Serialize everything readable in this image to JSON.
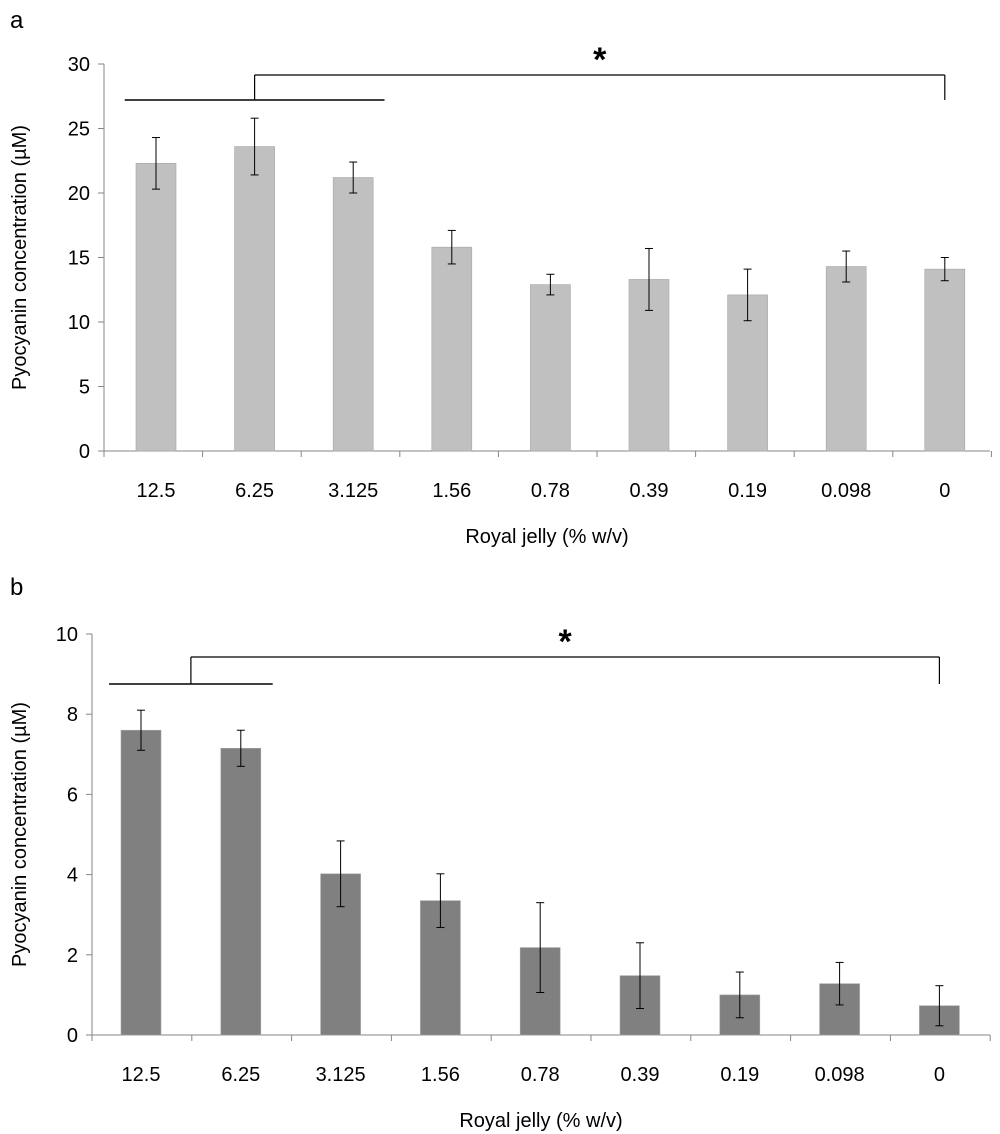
{
  "chart_data": [
    {
      "panel_label": "a",
      "type": "bar",
      "xlabel": "Royal jelly (% w/v)",
      "ylabel": "Pyocyanin concentration (µM)",
      "ylim": [
        0,
        30
      ],
      "yticks": [
        0,
        5,
        10,
        15,
        20,
        25,
        30
      ],
      "categories": [
        "12.5",
        "6.25",
        "3.125",
        "1.56",
        "0.78",
        "0.39",
        "0.19",
        "0.098",
        "0"
      ],
      "values": [
        22.3,
        23.6,
        21.2,
        15.8,
        12.9,
        13.3,
        12.1,
        14.3,
        14.1
      ],
      "errors": [
        2.0,
        2.2,
        1.2,
        1.3,
        0.8,
        2.4,
        2.0,
        1.2,
        0.9
      ],
      "bar_color": "#c0c0c0",
      "grid": false,
      "significance": {
        "marker": "*",
        "group_start": 0,
        "group_end": 2,
        "reference": 8
      }
    },
    {
      "panel_label": "b",
      "type": "bar",
      "xlabel": "Royal jelly (% w/v)",
      "ylabel": "Pyocyanin concentration (µM)",
      "ylim": [
        0,
        10
      ],
      "yticks": [
        0,
        2,
        4,
        6,
        8,
        10
      ],
      "categories": [
        "12.5",
        "6.25",
        "3.125",
        "1.56",
        "0.78",
        "0.39",
        "0.19",
        "0.098",
        "0"
      ],
      "values": [
        7.6,
        7.15,
        4.02,
        3.35,
        2.18,
        1.48,
        1.0,
        1.28,
        0.73
      ],
      "errors": [
        0.5,
        0.45,
        0.82,
        0.67,
        1.12,
        0.82,
        0.57,
        0.53,
        0.5
      ],
      "bar_color": "#808080",
      "grid": false,
      "significance": {
        "marker": "*",
        "group_start": 0,
        "group_end": 1,
        "reference": 8
      }
    }
  ]
}
